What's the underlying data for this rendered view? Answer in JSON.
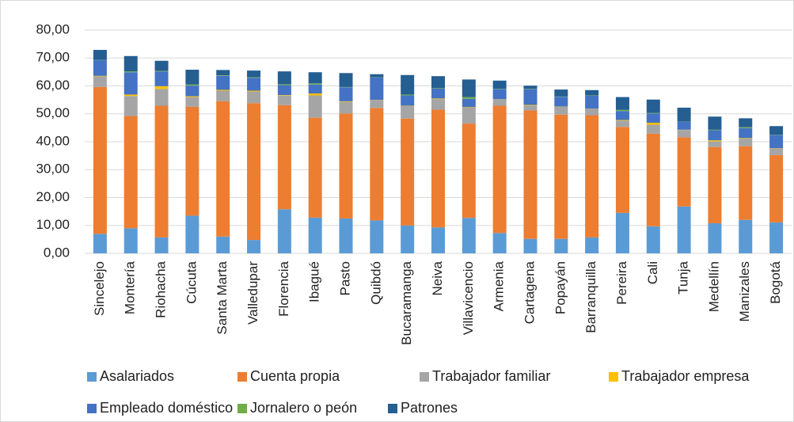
{
  "chart_data": {
    "type": "stacked_bar",
    "categories": [
      "Sincelejo",
      "Montería",
      "Riohacha",
      "Cúcuta",
      "Santa Marta",
      "Valledupar",
      "Florencia",
      "Ibagué",
      "Pasto",
      "Quibdó",
      "Bucaramanga",
      "Neiva",
      "Villavicencio",
      "Armenia",
      "Cartagena",
      "Popayán",
      "Barranquilla",
      "Pereira",
      "Cali",
      "Tunja",
      "Medellín",
      "Manizales",
      "Bogotá"
    ],
    "series": [
      {
        "name": "Asalariados",
        "color": "#5b9bd5",
        "values": [
          7,
          9,
          5.7,
          13.5,
          6,
          4.8,
          15.8,
          12.8,
          12.5,
          11.8,
          10,
          9.3,
          12.7,
          7.3,
          5.2,
          5.2,
          5.7,
          14.5,
          9.7,
          16.8,
          10.8,
          12,
          11.1
        ]
      },
      {
        "name": "Cuenta propia",
        "color": "#ed7d31",
        "values": [
          52.6,
          40.2,
          47.2,
          39,
          48.5,
          49,
          37.3,
          35.8,
          37.6,
          40.3,
          38.3,
          42.2,
          33.8,
          45.6,
          46,
          44.5,
          43.8,
          30.8,
          33.2,
          24.8,
          27.3,
          26.4,
          24.1
        ]
      },
      {
        "name": "Trabajador familiar",
        "color": "#a5a5a5",
        "values": [
          3.8,
          7.2,
          6,
          3.5,
          3.8,
          4.2,
          3.4,
          8,
          4.2,
          2.8,
          4.5,
          3.8,
          5.7,
          2.2,
          1.8,
          2.8,
          2.2,
          2.3,
          3.2,
          2.6,
          2,
          2.7,
          2.4
        ]
      },
      {
        "name": "Trabajador empresa",
        "color": "#ffc000",
        "values": [
          0.2,
          0.5,
          1,
          0.3,
          0.3,
          0.3,
          0.2,
          0.7,
          0.2,
          0.1,
          0.1,
          0.2,
          0.2,
          0.1,
          0.2,
          0.1,
          0.1,
          0.2,
          0.7,
          0.1,
          0.4,
          0.2,
          0.1
        ]
      },
      {
        "name": "Empleado doméstico",
        "color": "#4472c4",
        "values": [
          5.6,
          8,
          5.3,
          3.8,
          5,
          4.6,
          3.6,
          3.2,
          5,
          8,
          3.7,
          3.5,
          3,
          3.6,
          5.6,
          3.5,
          4.7,
          3.2,
          3.3,
          2.8,
          3.6,
          3.6,
          4.7
        ]
      },
      {
        "name": "Jornalero o peón",
        "color": "#70ad47",
        "values": [
          0.1,
          0.3,
          0.2,
          0.4,
          0.2,
          0.2,
          0.3,
          0.4,
          0.1,
          0.1,
          0.3,
          0.2,
          0.6,
          0.1,
          0.1,
          0.1,
          0.1,
          0.4,
          0.2,
          0.1,
          0.2,
          0.3,
          0.1
        ]
      },
      {
        "name": "Patrones",
        "color": "#255e91",
        "values": [
          3.6,
          5.5,
          3.6,
          5.3,
          1.9,
          2.4,
          4.6,
          4,
          5,
          1.1,
          7,
          4.3,
          6.3,
          3,
          1.2,
          2.5,
          1.9,
          4.6,
          4.8,
          5,
          4.7,
          3.2,
          3.1
        ]
      }
    ],
    "ylim": [
      0,
      80
    ],
    "yticks": [
      {
        "value": 0,
        "label": "0,00"
      },
      {
        "value": 10,
        "label": "10,00"
      },
      {
        "value": 20,
        "label": "20,00"
      },
      {
        "value": 30,
        "label": "30,00"
      },
      {
        "value": 40,
        "label": "40,00"
      },
      {
        "value": 50,
        "label": "50,00"
      },
      {
        "value": 60,
        "label": "60,00"
      },
      {
        "value": 70,
        "label": "70,00"
      },
      {
        "value": 80,
        "label": "80,00"
      }
    ],
    "grid": true
  }
}
